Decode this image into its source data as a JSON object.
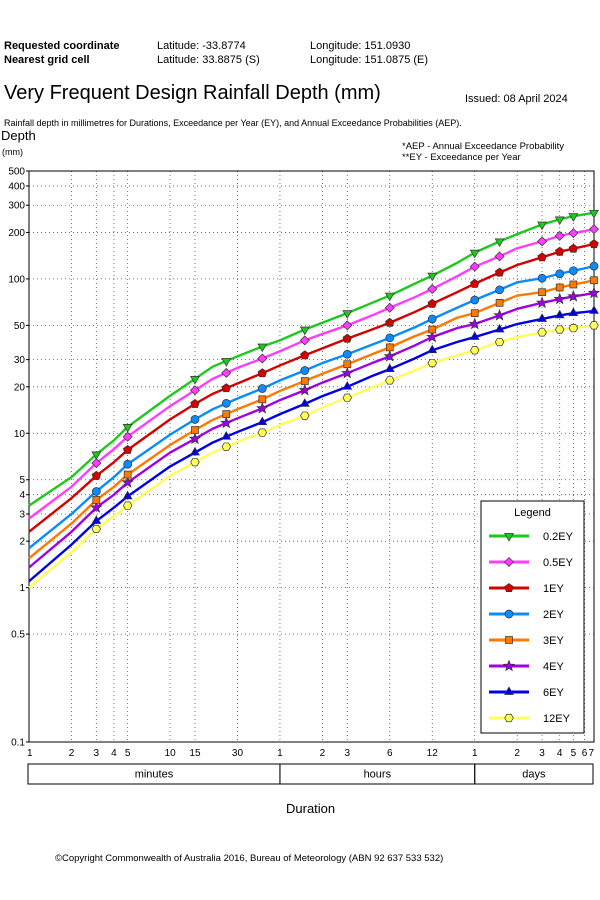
{
  "header": {
    "requested_label": "Requested coordinate",
    "requested_lat": "Latitude:  -33.8774",
    "requested_lon": "Longitude:  151.0930",
    "nearest_label": "Nearest grid cell",
    "nearest_lat": "Latitude:  33.8875 (S)",
    "nearest_lon": "Longitude:  151.0875 (E)"
  },
  "title": "Very Frequent Design Rainfall Depth (mm)",
  "issued": "Issued: 08 April 2024",
  "subtitle": "Rainfall depth in millimetres for Durations, Exceedance per Year (EY), and Annual Exceedance Probabilities (AEP).",
  "notes": {
    "aep": "*AEP - Annual Exceedance Probability",
    "ey": "**EY - Exceedance per Year"
  },
  "copyright": "©Copyright Commonwealth of Australia 2016, Bureau of Meteorology (ABN 92 637 533 532)",
  "chart_data": {
    "type": "line",
    "title": "Very Frequent Design Rainfall Depth (mm)",
    "xlabel": "Duration",
    "ylabel": "Depth",
    "yunit": "(mm)",
    "yscale": "log",
    "xscale": "log",
    "ylim": [
      0.1,
      500
    ],
    "yticks": [
      0.1,
      0.5,
      1,
      2,
      3,
      4,
      5,
      10,
      20,
      30,
      50,
      100,
      200,
      300,
      400,
      500
    ],
    "xlim_minutes": [
      1,
      10080
    ],
    "x_tick_minutes": [
      1,
      2,
      3,
      4,
      5,
      10,
      15,
      30,
      60,
      120,
      180,
      360,
      720,
      1440,
      2880,
      4320,
      5760,
      7200,
      8640,
      10080
    ],
    "x_tick_labels": [
      "1",
      "2",
      "3",
      "4",
      "5",
      "10",
      "15",
      "30",
      "1",
      "2",
      "3",
      "6",
      "12",
      "1",
      "2",
      "3",
      "4",
      "5",
      "6",
      "7"
    ],
    "x_groups": [
      {
        "label": "minutes",
        "from": 1,
        "to": 60
      },
      {
        "label": "hours",
        "from": 60,
        "to": 1440
      },
      {
        "label": "days",
        "from": 1440,
        "to": 10080
      }
    ],
    "grid": true,
    "legend_title": "Legend",
    "legend_position": "bottom-right",
    "x": [
      1,
      2,
      3,
      4,
      5,
      10,
      15,
      20,
      30,
      45,
      60,
      90,
      120,
      180,
      270,
      360,
      540,
      720,
      1080,
      1440,
      2160,
      2880,
      4320,
      5760,
      7200,
      8640,
      10080
    ],
    "series": [
      {
        "name": "0.2EY",
        "color": "#1ec81e",
        "marker": "triangle-down",
        "values": [
          3.4,
          5.2,
          7.3,
          9.0,
          11.0,
          17.5,
          22.5,
          27.0,
          31.5,
          36.5,
          40.0,
          47.0,
          52.0,
          60.0,
          70.0,
          78.0,
          93.0,
          105.0,
          127.0,
          148.0,
          175.0,
          195.0,
          225.0,
          243.0,
          255.0,
          262.0,
          268.0
        ]
      },
      {
        "name": "0.5EY",
        "color": "#ff3cff",
        "marker": "diamond",
        "values": [
          2.8,
          4.5,
          6.4,
          7.9,
          9.5,
          15.0,
          19.0,
          22.5,
          26.5,
          30.5,
          34.0,
          40.0,
          44.0,
          50.0,
          58.0,
          65.0,
          76.0,
          86.0,
          104.0,
          120.0,
          140.0,
          158.0,
          175.0,
          190.0,
          198.0,
          204.0,
          210.0
        ]
      },
      {
        "name": "1EY",
        "color": "#d40000",
        "marker": "pentagon",
        "values": [
          2.3,
          3.8,
          5.3,
          6.5,
          7.8,
          12.3,
          15.5,
          18.0,
          21.0,
          24.5,
          27.5,
          32.0,
          35.5,
          41.0,
          47.0,
          52.0,
          61.0,
          69.0,
          82.0,
          93.0,
          110.0,
          123.0,
          138.0,
          150.0,
          157.0,
          163.0,
          168.0
        ]
      },
      {
        "name": "2EY",
        "color": "#0a8cff",
        "marker": "circle",
        "values": [
          1.8,
          3.0,
          4.2,
          5.2,
          6.3,
          9.8,
          12.3,
          14.3,
          16.8,
          19.5,
          22.0,
          25.5,
          28.5,
          32.5,
          37.5,
          41.5,
          48.5,
          55.0,
          65.0,
          73.0,
          85.0,
          95.0,
          101.0,
          108.0,
          113.0,
          117.0,
          121.0
        ]
      },
      {
        "name": "3EY",
        "color": "#ff7800",
        "marker": "square",
        "values": [
          1.55,
          2.6,
          3.7,
          4.5,
          5.4,
          8.4,
          10.5,
          12.2,
          14.3,
          16.6,
          18.8,
          21.8,
          24.3,
          28.0,
          32.5,
          36.0,
          42.5,
          47.0,
          56.0,
          60.0,
          70.0,
          78.0,
          82.0,
          88.0,
          92.0,
          95.0,
          98.0
        ]
      },
      {
        "name": "4EY",
        "color": "#a000e6",
        "marker": "star",
        "values": [
          1.35,
          2.3,
          3.3,
          4.0,
          4.8,
          7.5,
          9.2,
          10.7,
          12.5,
          14.5,
          16.4,
          19.0,
          21.3,
          24.5,
          28.5,
          31.5,
          37.0,
          42.0,
          48.0,
          51.0,
          58.0,
          64.0,
          70.0,
          74.0,
          77.0,
          79.0,
          81.0
        ]
      },
      {
        "name": "6EY",
        "color": "#0000e6",
        "marker": "triangle-up",
        "values": [
          1.1,
          1.9,
          2.7,
          3.3,
          3.9,
          6.1,
          7.5,
          8.7,
          10.2,
          11.8,
          13.3,
          15.5,
          17.4,
          20.0,
          23.5,
          26.0,
          30.5,
          34.5,
          39.0,
          42.0,
          47.0,
          51.0,
          55.0,
          58.0,
          60.0,
          61.0,
          62.0
        ]
      },
      {
        "name": "12EY",
        "color": "#ffff5a",
        "marker": "hexagon",
        "values": [
          1.0,
          1.7,
          2.4,
          2.9,
          3.4,
          5.3,
          6.5,
          7.5,
          8.8,
          10.1,
          11.3,
          13.0,
          14.7,
          17.0,
          19.8,
          22.0,
          25.5,
          28.5,
          32.0,
          34.5,
          39.0,
          42.0,
          45.0,
          47.0,
          48.0,
          49.0,
          50.0
        ]
      }
    ],
    "marker_x": [
      3,
      5,
      15,
      25,
      45,
      90,
      180,
      360,
      720,
      1440,
      2160,
      4320,
      5760,
      7200,
      10080
    ]
  }
}
